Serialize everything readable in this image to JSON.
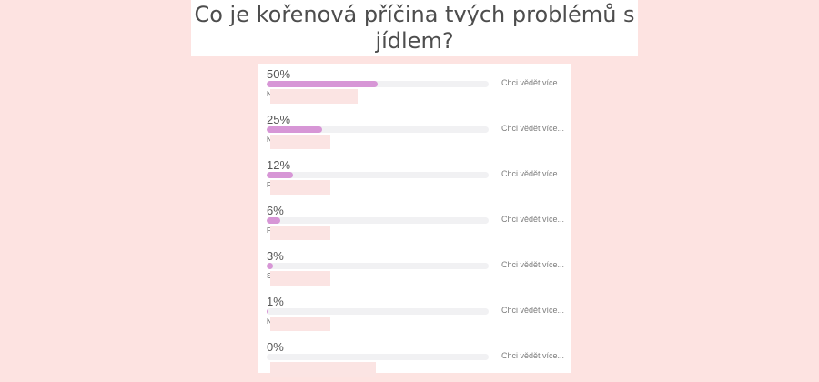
{
  "question": {
    "title": "Co je kořenová příčina tvých problémů s jídlem?"
  },
  "results": [
    {
      "percent_label": "50%",
      "share": 0.5,
      "answer_fragment": "N                          ečí",
      "learn_more": "Chci vědět více..."
    },
    {
      "percent_label": "25%",
      "share": 0.25,
      "answer_fragment": "N                 ku",
      "learn_more": "Chci vědět více..."
    },
    {
      "percent_label": "12%",
      "share": 0.12,
      "answer_fragment": "F",
      "learn_more": "Chci vědět více..."
    },
    {
      "percent_label": "6%",
      "share": 0.06,
      "answer_fragment": "F",
      "learn_more": "Chci vědět více..."
    },
    {
      "percent_label": "3%",
      "share": 0.03,
      "answer_fragment": "S",
      "learn_more": "Chci vědět více..."
    },
    {
      "percent_label": "1%",
      "share": 0.01,
      "answer_fragment": "N                 ní",
      "learn_more": "Chci vědět více..."
    },
    {
      "percent_label": "0%",
      "share": 0.0,
      "answer_fragment": "",
      "learn_more": "Chci vědět více..."
    }
  ]
}
